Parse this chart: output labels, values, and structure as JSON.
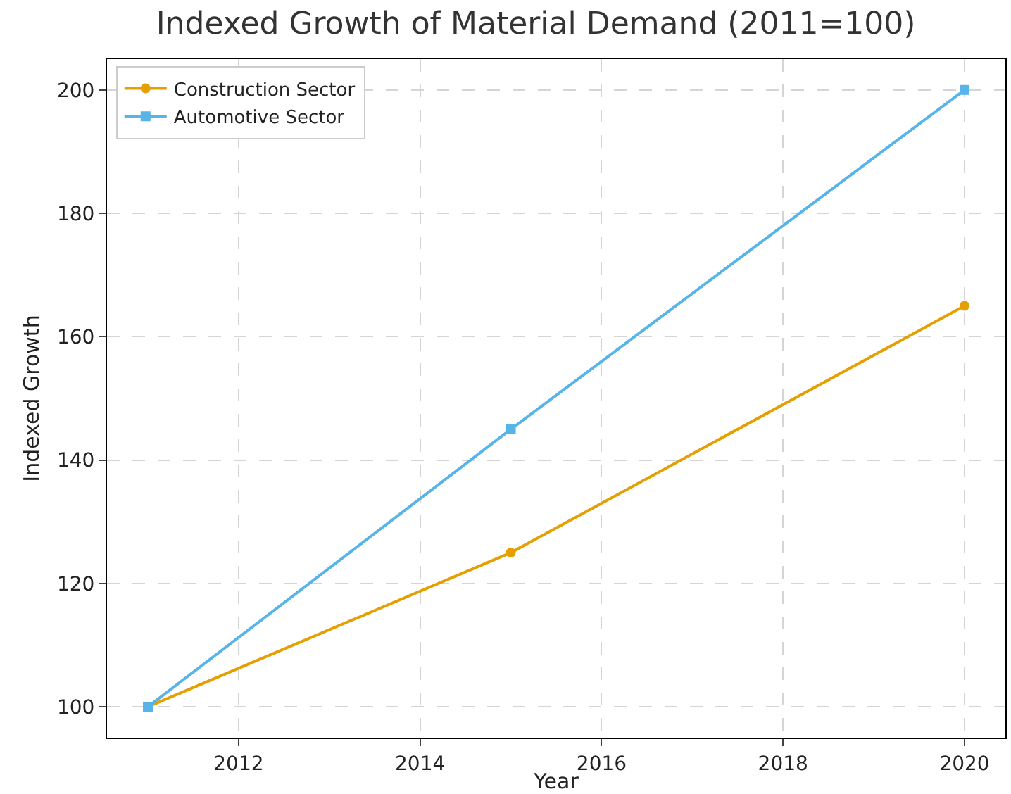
{
  "chart_data": {
    "type": "line",
    "title": "Indexed Growth of Material Demand (2011=100)",
    "xlabel": "Year",
    "ylabel": "Indexed Growth",
    "x": [
      2011,
      2015,
      2020
    ],
    "series": [
      {
        "name": "Construction Sector",
        "color": "#e69f00",
        "marker": "circle",
        "values": [
          100,
          125,
          165
        ]
      },
      {
        "name": "Automotive Sector",
        "color": "#56b4e9",
        "marker": "square",
        "values": [
          100,
          145,
          200
        ]
      }
    ],
    "xlim": [
      2010.55,
      2020.45
    ],
    "xticks": [
      2012,
      2014,
      2016,
      2018,
      2020
    ],
    "ylim": [
      95,
      205
    ],
    "yticks": [
      100,
      120,
      140,
      160,
      180,
      200
    ],
    "grid": true,
    "legend": "top left",
    "line_style": "solid"
  }
}
